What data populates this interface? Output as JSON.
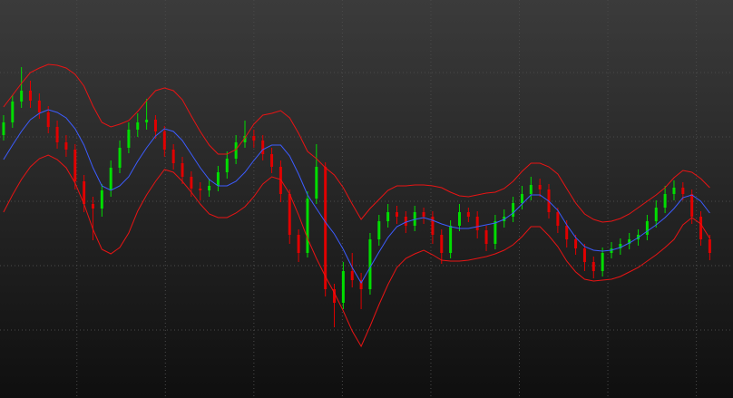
{
  "chart_data": {
    "type": "candlestick",
    "up_color": "#00dd00",
    "down_color": "#e00000",
    "grid": true,
    "xlim": [
      -0.4,
      81.6
    ],
    "xticks": [
      8.2,
      18.1,
      28,
      37.9,
      47.8,
      57.7,
      67.6,
      77.5
    ],
    "ylim": [
      0,
      439
    ],
    "yticks": [
      75,
      146,
      217,
      288,
      359
    ],
    "open": [
      290,
      304,
      327,
      339,
      328,
      315,
      299,
      282,
      274,
      239,
      214,
      209,
      229,
      254,
      276,
      296,
      304,
      307,
      294,
      274,
      259,
      244,
      231,
      229,
      234,
      249,
      264,
      282,
      289,
      284,
      269,
      255,
      225,
      180,
      160,
      220,
      255,
      120,
      105,
      140,
      130,
      120,
      175,
      195,
      205,
      200,
      190,
      205,
      200,
      180,
      160,
      190,
      205,
      200,
      185,
      170,
      195,
      200,
      215,
      225,
      235,
      230,
      205,
      190,
      175,
      165,
      150,
      140,
      160,
      165,
      170,
      175,
      180,
      195,
      210,
      225,
      232,
      225,
      200,
      175
    ],
    "high": [
      312,
      334,
      365,
      350,
      336,
      322,
      306,
      290,
      280,
      246,
      222,
      236,
      262,
      284,
      304,
      314,
      330,
      312,
      300,
      280,
      266,
      250,
      238,
      242,
      256,
      272,
      290,
      306,
      296,
      290,
      276,
      262,
      230,
      186,
      228,
      280,
      260,
      126,
      150,
      160,
      138,
      182,
      202,
      214,
      212,
      206,
      212,
      210,
      206,
      186,
      196,
      214,
      210,
      206,
      190,
      202,
      208,
      222,
      234,
      244,
      242,
      236,
      210,
      196,
      180,
      170,
      156,
      166,
      172,
      176,
      182,
      186,
      202,
      218,
      234,
      240,
      238,
      230,
      206,
      180
    ],
    "low": [
      284,
      298,
      320,
      320,
      308,
      292,
      275,
      266,
      230,
      205,
      174,
      200,
      222,
      248,
      270,
      288,
      296,
      286,
      266,
      252,
      236,
      222,
      218,
      222,
      228,
      242,
      258,
      276,
      276,
      262,
      248,
      216,
      170,
      150,
      155,
      214,
      112,
      78,
      98,
      122,
      98,
      114,
      168,
      188,
      192,
      182,
      184,
      192,
      170,
      148,
      154,
      184,
      194,
      176,
      162,
      164,
      188,
      194,
      208,
      218,
      222,
      198,
      182,
      166,
      158,
      140,
      132,
      134,
      154,
      158,
      164,
      168,
      174,
      188,
      204,
      218,
      218,
      192,
      168,
      152
    ],
    "close": [
      304,
      327,
      339,
      328,
      315,
      299,
      282,
      274,
      239,
      214,
      209,
      229,
      254,
      276,
      296,
      304,
      307,
      294,
      274,
      259,
      244,
      231,
      229,
      234,
      249,
      264,
      282,
      289,
      284,
      269,
      255,
      225,
      180,
      160,
      220,
      255,
      120,
      105,
      140,
      130,
      120,
      175,
      195,
      205,
      200,
      190,
      205,
      200,
      180,
      160,
      190,
      205,
      200,
      185,
      170,
      195,
      200,
      215,
      225,
      235,
      230,
      205,
      190,
      175,
      165,
      150,
      140,
      160,
      165,
      170,
      175,
      180,
      195,
      210,
      225,
      232,
      225,
      200,
      175,
      160
    ],
    "lines": [
      {
        "color": "#e81414",
        "values": [
          321,
          334,
          347,
          359,
          364,
          368,
          367,
          364,
          357,
          344,
          322,
          304,
          299,
          302,
          306,
          316,
          328,
          339,
          342,
          339,
          329,
          311,
          294,
          279,
          269,
          269,
          274,
          287,
          302,
          312,
          314,
          317,
          309,
          292,
          272,
          264,
          254,
          246,
          232,
          214,
          197,
          209,
          219,
          229,
          234,
          234,
          235,
          235,
          234,
          232,
          227,
          223,
          222,
          224,
          226,
          227,
          231,
          239,
          250,
          259,
          259,
          255,
          247,
          231,
          215,
          203,
          197,
          194,
          195,
          198,
          203,
          210,
          217,
          224,
          232,
          243,
          251,
          249,
          242,
          232
        ]
      },
      {
        "color": "#3c5cff",
        "values": [
          263,
          279,
          294,
          307,
          314,
          318,
          315,
          309,
          297,
          279,
          254,
          234,
          229,
          234,
          244,
          261,
          276,
          289,
          297,
          294,
          284,
          269,
          254,
          241,
          234,
          234,
          239,
          249,
          262,
          274,
          279,
          279,
          267,
          247,
          224,
          209,
          194,
          181,
          164,
          144,
          127,
          144,
          161,
          177,
          189,
          194,
          197,
          199,
          196,
          192,
          189,
          187,
          187,
          189,
          191,
          193,
          197,
          204,
          214,
          224,
          224,
          217,
          207,
          191,
          177,
          167,
          163,
          162,
          163,
          166,
          171,
          177,
          184,
          191,
          199,
          209,
          221,
          224,
          217,
          204
        ]
      },
      {
        "color": "#e81414",
        "values": [
          205,
          224,
          241,
          255,
          264,
          268,
          263,
          254,
          237,
          214,
          186,
          164,
          159,
          166,
          182,
          206,
          224,
          239,
          252,
          249,
          239,
          227,
          214,
          203,
          199,
          199,
          204,
          211,
          222,
          236,
          244,
          241,
          225,
          202,
          176,
          154,
          134,
          116,
          96,
          74,
          57,
          79,
          103,
          125,
          144,
          154,
          159,
          163,
          158,
          152,
          151,
          151,
          152,
          154,
          156,
          159,
          163,
          169,
          178,
          189,
          189,
          179,
          167,
          151,
          139,
          131,
          129,
          130,
          131,
          134,
          139,
          144,
          151,
          158,
          166,
          175,
          191,
          199,
          192,
          176
        ]
      }
    ]
  }
}
